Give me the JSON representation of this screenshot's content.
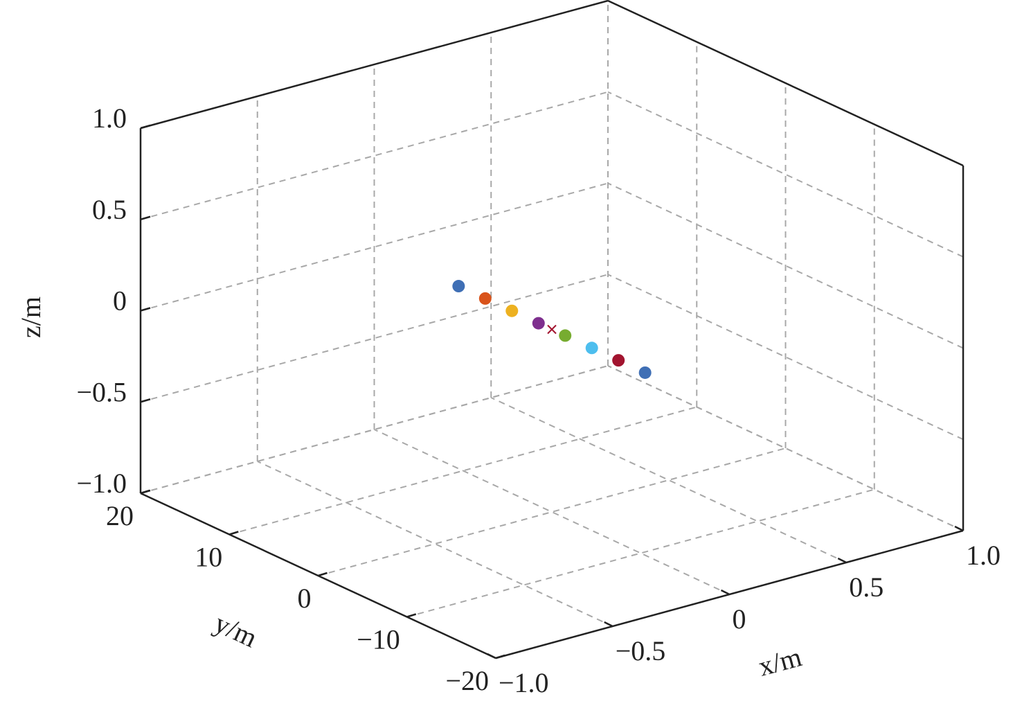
{
  "chart_data": {
    "type": "scatter3d",
    "x_label": "x/m",
    "y_label": "y/m",
    "z_label": "z/m",
    "x": [
      0,
      0,
      0,
      0,
      0,
      0,
      0,
      0
    ],
    "y": [
      10.5,
      7.5,
      4.5,
      1.5,
      -1.5,
      -4.5,
      -7.5,
      -10.5
    ],
    "z": [
      0,
      0,
      0,
      0,
      0,
      0,
      0,
      0
    ],
    "colors": [
      "#3f6fb5",
      "#d9531a",
      "#edb120",
      "#7e2f8e",
      "#77ac30",
      "#4dbeee",
      "#a2142f",
      "#3f6fb5"
    ],
    "center": {
      "x": 0,
      "y": 0,
      "z": 0,
      "color": "#a2142f"
    },
    "xlim": [
      -1,
      1
    ],
    "ylim": [
      -20,
      20
    ],
    "zlim": [
      -1,
      1
    ],
    "xticks": [
      {
        "value": -1,
        "label": "−1.0"
      },
      {
        "value": -0.5,
        "label": "−0.5"
      },
      0,
      0.5,
      {
        "value": 1,
        "label": "1.0"
      }
    ],
    "yticks": [
      {
        "value": -20,
        "label": "−20"
      },
      {
        "value": -10,
        "label": "−10"
      },
      0,
      10,
      20
    ],
    "zticks": [
      {
        "value": -1,
        "label": "−1.0"
      },
      {
        "value": -0.5,
        "label": "−0.5"
      },
      0,
      0.5,
      {
        "value": 1,
        "label": "1.0"
      }
    ],
    "grid": true
  }
}
